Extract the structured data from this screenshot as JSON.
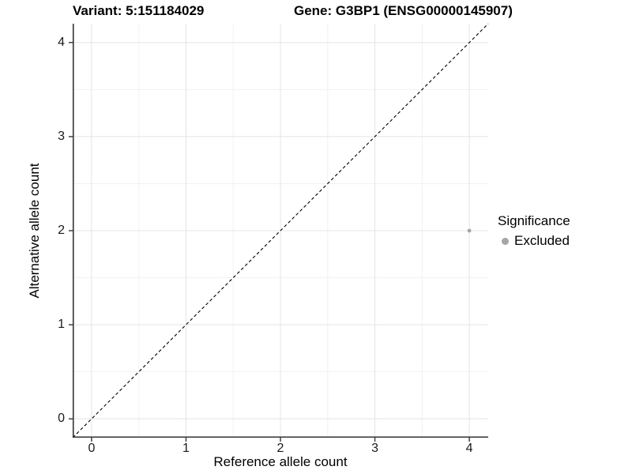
{
  "titles": {
    "variant": "Variant: 5:151184029",
    "gene": "Gene: G3BP1 (ENSG00000145907)"
  },
  "axes": {
    "x_label": "Reference allele count",
    "y_label": "Alternative allele count"
  },
  "legend": {
    "title": "Significance",
    "items": [
      {
        "label": "Excluded",
        "color": "#a6a6a6"
      }
    ]
  },
  "colors": {
    "background": "#ffffff",
    "grid_major": "#e4e4e4",
    "grid_minor": "#f1f1f1",
    "axis_line": "#333333",
    "tick_text": "#1a1a1a",
    "identity_line": "#000000",
    "point_excluded": "#a6a6a6"
  },
  "chart_data": {
    "type": "scatter",
    "title": "Variant: 5:151184029   Gene: G3BP1 (ENSG00000145907)",
    "xlabel": "Reference allele count",
    "ylabel": "Alternative allele count",
    "xlim": [
      -0.2,
      4.2
    ],
    "ylim": [
      -0.2,
      4.2
    ],
    "x_ticks": [
      0,
      1,
      2,
      3,
      4
    ],
    "y_ticks": [
      0,
      1,
      2,
      3,
      4
    ],
    "minor_ticks": [
      0.5,
      1.5,
      2.5,
      3.5
    ],
    "grid": true,
    "legend_position": "right",
    "legend_title": "Significance",
    "series": [
      {
        "name": "Excluded",
        "color": "#a6a6a6",
        "points": [
          {
            "x": 4,
            "y": 2
          }
        ]
      }
    ],
    "reference_line": {
      "type": "identity",
      "slope": 1,
      "intercept": 0,
      "style": "dashed",
      "color": "#000000"
    }
  }
}
